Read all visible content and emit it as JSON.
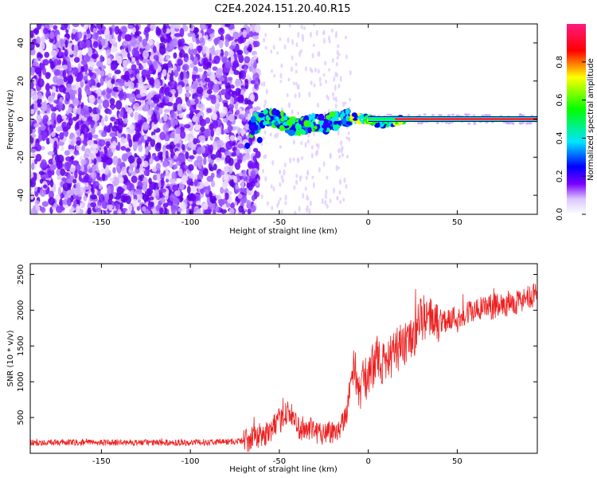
{
  "figure": {
    "title": "C2E4.2024.151.20.40.R15"
  },
  "chart_data": [
    {
      "type": "heatmap",
      "xlabel": "Height of straight line (km)",
      "ylabel": "Frequency (Hz)",
      "xlim": [
        -190,
        95
      ],
      "ylim": [
        -50,
        50
      ],
      "xticks": [
        -150,
        -100,
        -50,
        0,
        50
      ],
      "yticks": [
        -40,
        -20,
        0,
        20,
        40
      ],
      "colorbar": {
        "label": "Normalized spectral amplitude",
        "range": [
          0,
          1
        ],
        "ticks": [
          0.0,
          0.2,
          0.4,
          0.6,
          0.8
        ],
        "tick_labels": [
          "0.0",
          "0.2",
          "0.4",
          "0.6",
          "0.8"
        ],
        "colors": [
          "#ffffff",
          "#6600ff",
          "#0000ff",
          "#00ffff",
          "#00ff00",
          "#ffff00",
          "#ff0000",
          "#ff0080"
        ]
      },
      "ridge": {
        "x": [
          -68,
          -65,
          -60,
          -55,
          -50,
          -45,
          -40,
          -35,
          -30,
          -25,
          -20,
          -15,
          -10,
          -5,
          0,
          5,
          10,
          15,
          20,
          30,
          40,
          50,
          60,
          70,
          80,
          95
        ],
        "frequency": [
          -14,
          -3,
          -1,
          1,
          0,
          -3,
          -4,
          -3,
          -2,
          -3,
          -1,
          0,
          1,
          0,
          0,
          -2,
          -2,
          -1,
          0,
          0,
          0,
          0,
          0,
          0,
          0,
          0
        ]
      },
      "noise_region_x": [
        -190,
        -65
      ]
    },
    {
      "type": "line",
      "xlabel": "Height of straight line (km)",
      "ylabel": "SNR (10 * v/v)",
      "xlim": [
        -190,
        95
      ],
      "ylim": [
        0,
        2650
      ],
      "xticks": [
        -150,
        -100,
        -50,
        0,
        50
      ],
      "yticks": [
        500,
        1000,
        1500,
        2000,
        2500
      ],
      "series_color": "#ee2020",
      "trend": {
        "x": [
          -190,
          -150,
          -100,
          -70,
          -55,
          -45,
          -40,
          -30,
          -20,
          -15,
          -12,
          -10,
          -8,
          -5,
          0,
          5,
          10,
          15,
          20,
          25,
          30,
          40,
          50,
          60,
          70,
          80,
          95
        ],
        "y": [
          150,
          150,
          150,
          170,
          300,
          600,
          380,
          300,
          300,
          400,
          600,
          1000,
          1200,
          900,
          1100,
          1350,
          1200,
          1450,
          1500,
          1600,
          1900,
          1850,
          1900,
          2000,
          2050,
          2100,
          2200
        ]
      }
    }
  ]
}
